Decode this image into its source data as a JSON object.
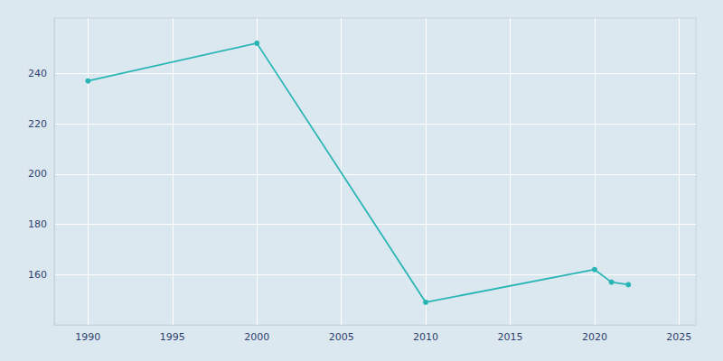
{
  "chart_data": {
    "type": "line",
    "x": [
      1990,
      2000,
      2010,
      2020,
      2021,
      2022
    ],
    "values": [
      237,
      252,
      149,
      162,
      157,
      156
    ],
    "color": "#2ab5b5",
    "marker": "circle",
    "xlim": [
      1988,
      2026
    ],
    "xticks": [
      1990,
      1995,
      2000,
      2005,
      2010,
      2015,
      2020,
      2025
    ],
    "ylim": [
      140,
      262
    ],
    "yticks": [
      160,
      180,
      200,
      220,
      240
    ],
    "grid": true
  }
}
